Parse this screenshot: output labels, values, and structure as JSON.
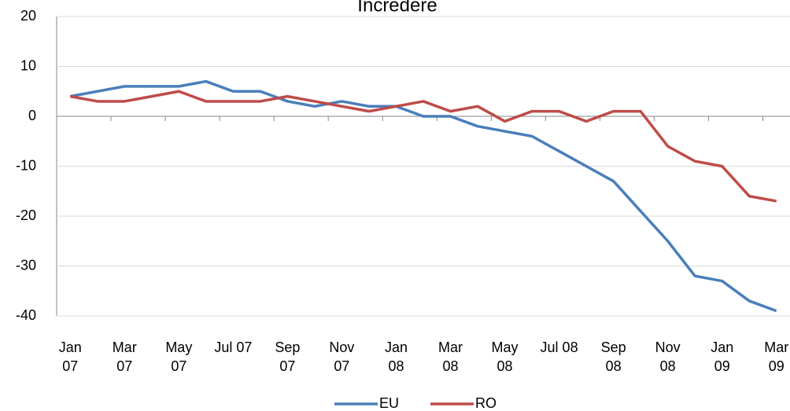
{
  "chart_data": {
    "type": "line",
    "title": "Incredere",
    "categories": [
      "Jan\n07",
      null,
      "Mar\n07",
      null,
      "May\n07",
      null,
      "Jul 07",
      null,
      "Sep\n07",
      null,
      "Nov\n07",
      null,
      "Jan\n08",
      null,
      "Mar\n08",
      null,
      "May\n08",
      null,
      "Jul 08",
      null,
      "Sep\n08",
      null,
      "Nov\n08",
      null,
      "Jan\n09",
      null,
      "Mar\n09"
    ],
    "series": [
      {
        "name": "EU",
        "color": "#4a7ebb",
        "values": [
          4,
          5,
          6,
          6,
          6,
          7,
          5,
          5,
          3,
          2,
          3,
          2,
          2,
          0,
          0,
          -2,
          -3,
          -4,
          -7,
          -10,
          -13,
          -19,
          -25,
          -32,
          -33,
          -37,
          -39
        ]
      },
      {
        "name": "RO",
        "color": "#be4b48",
        "values": [
          4,
          3,
          3,
          4,
          5,
          3,
          3,
          3,
          4,
          3,
          2,
          1,
          2,
          3,
          1,
          2,
          -1,
          1,
          1,
          -1,
          1,
          1,
          -6,
          -9,
          -10,
          -16,
          -17
        ]
      }
    ],
    "ylim": [
      -40,
      20
    ],
    "yticks": [
      -40,
      -30,
      -20,
      -10,
      0,
      10,
      20
    ],
    "grid": true,
    "legend": "bottom"
  }
}
